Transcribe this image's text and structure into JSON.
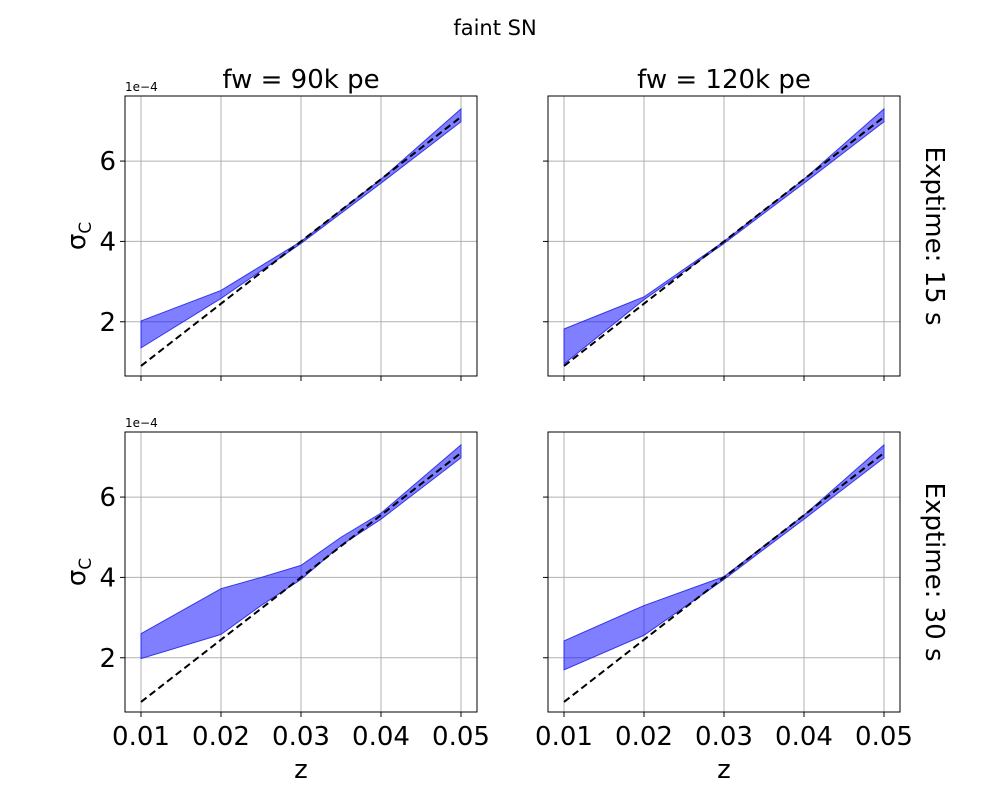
{
  "figure": {
    "suptitle": "faint SN",
    "column_titles": [
      "fw = 90k pe",
      "fw = 120k pe"
    ],
    "row_titles": [
      "Exptime: 15 s",
      "Exptime: 30 s"
    ],
    "xlabel": "z",
    "ylabel": "σ",
    "ylabel_sub": "C",
    "y_offset_text": "1e−4"
  },
  "chart_data": [
    {
      "type": "area",
      "panel": "fw = 90k pe / Exptime: 15 s",
      "x": [
        0.01,
        0.02,
        0.03,
        0.04,
        0.05
      ],
      "band_upper": [
        2.02,
        2.78,
        4.0,
        5.55,
        7.3
      ],
      "band_lower": [
        1.35,
        2.58,
        3.95,
        5.45,
        6.98
      ],
      "reference_line": [
        0.9,
        2.45,
        4.0,
        5.55,
        7.1
      ],
      "xlim": [
        0.008,
        0.052
      ],
      "ylim": [
        0.65,
        7.62
      ],
      "xticks": [
        0.01,
        0.02,
        0.03,
        0.04,
        0.05
      ],
      "yticks": [
        2,
        4,
        6
      ],
      "ytick_labels": [
        "2",
        "4",
        "6"
      ],
      "grid": true
    },
    {
      "type": "area",
      "panel": "fw = 120k pe / Exptime: 15 s",
      "x": [
        0.01,
        0.02,
        0.03,
        0.04,
        0.05
      ],
      "band_upper": [
        1.82,
        2.62,
        4.0,
        5.55,
        7.3
      ],
      "band_lower": [
        0.95,
        2.55,
        3.95,
        5.45,
        6.98
      ],
      "reference_line": [
        0.9,
        2.45,
        4.0,
        5.55,
        7.1
      ],
      "xlim": [
        0.008,
        0.052
      ],
      "ylim": [
        0.65,
        7.62
      ],
      "xticks": [
        0.01,
        0.02,
        0.03,
        0.04,
        0.05
      ],
      "yticks": [
        2,
        4,
        6
      ],
      "grid": true
    },
    {
      "type": "area",
      "panel": "fw = 90k pe / Exptime: 30 s",
      "x": [
        0.01,
        0.02,
        0.025,
        0.03,
        0.035,
        0.04,
        0.05
      ],
      "band_upper": [
        2.6,
        3.72,
        4.0,
        4.3,
        5.0,
        5.6,
        7.3
      ],
      "band_lower": [
        1.98,
        2.58,
        3.3,
        3.95,
        4.8,
        5.45,
        6.98
      ],
      "reference_line": [
        0.9,
        2.45,
        3.22,
        4.0,
        4.78,
        5.55,
        7.1
      ],
      "xlim": [
        0.008,
        0.052
      ],
      "ylim": [
        0.65,
        7.62
      ],
      "xticks": [
        0.01,
        0.02,
        0.03,
        0.04,
        0.05
      ],
      "xtick_labels": [
        "0.01",
        "0.02",
        "0.03",
        "0.04",
        "0.05"
      ],
      "yticks": [
        2,
        4,
        6
      ],
      "ytick_labels": [
        "2",
        "4",
        "6"
      ],
      "grid": true
    },
    {
      "type": "area",
      "panel": "fw = 120k pe / Exptime: 30 s",
      "x": [
        0.01,
        0.02,
        0.03,
        0.04,
        0.05
      ],
      "band_upper": [
        2.42,
        3.3,
        4.02,
        5.55,
        7.3
      ],
      "band_lower": [
        1.7,
        2.56,
        3.95,
        5.45,
        6.98
      ],
      "reference_line": [
        0.9,
        2.45,
        4.0,
        5.55,
        7.1
      ],
      "xlim": [
        0.008,
        0.052
      ],
      "ylim": [
        0.65,
        7.62
      ],
      "xticks": [
        0.01,
        0.02,
        0.03,
        0.04,
        0.05
      ],
      "xtick_labels": [
        "0.01",
        "0.02",
        "0.03",
        "0.04",
        "0.05"
      ],
      "yticks": [
        2,
        4,
        6
      ],
      "grid": true
    }
  ]
}
